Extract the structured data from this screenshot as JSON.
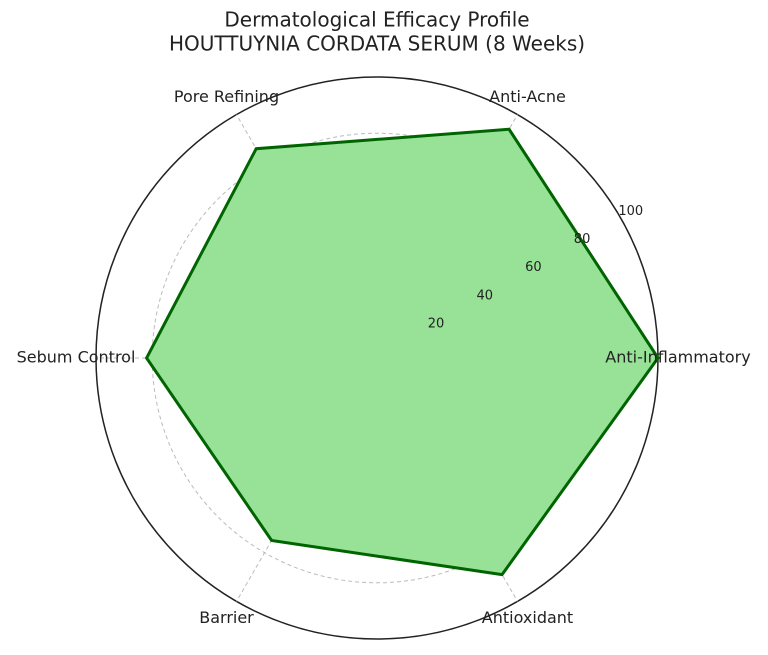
{
  "chart_data": {
    "type": "radar",
    "title": "Dermatological Efficacy Profile",
    "subtitle": "HOUTTUYNIA CORDATA SERUM (8 Weeks)",
    "categories": [
      "Anti-Inflammatory",
      "Anti-Acne",
      "Pore Refining",
      "Sebum Control",
      "Barrier",
      "Antioxidant"
    ],
    "values": [
      100,
      94,
      86,
      82,
      75,
      89
    ],
    "color": "#006400",
    "fill": "#98e298",
    "ylim": [
      0,
      100
    ],
    "yticks": [
      20,
      40,
      60,
      80,
      100
    ],
    "grid": true
  }
}
